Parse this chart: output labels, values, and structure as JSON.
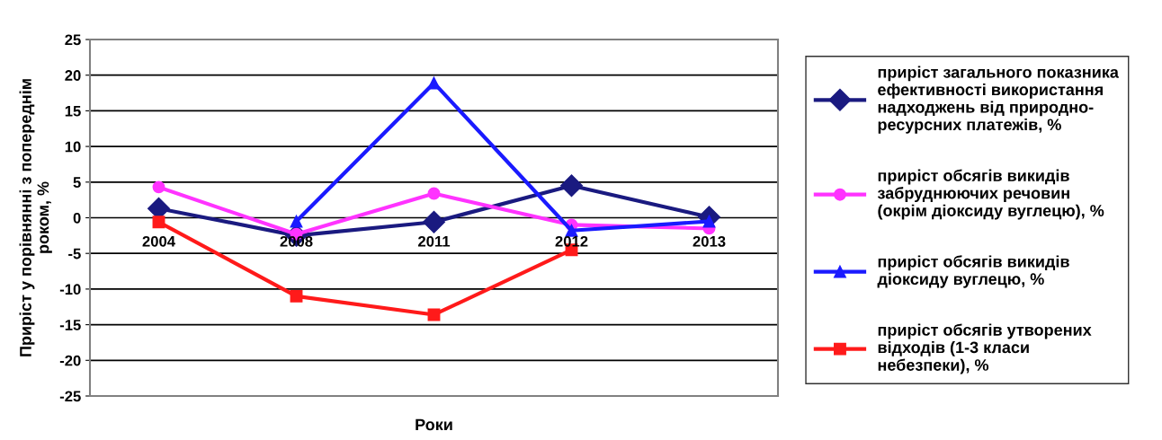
{
  "chart_data": {
    "type": "line",
    "xlabel": "Роки",
    "ylabel": "Приріст у порівнянні з попереднім\nроком, %",
    "categories": [
      "2004",
      "2008",
      "2011",
      "2012",
      "2013"
    ],
    "series": [
      {
        "name": "приріст загального показника\nефективності використання\nнадходжень від природно-\nресурсних платежів, %",
        "color": "#1a1a80",
        "marker": "diamond",
        "values": [
          1.3,
          -2.5,
          -0.6,
          4.5,
          0.1
        ]
      },
      {
        "name": "приріст обсягів викидів\nзабруднюючих речовин\n(окрім діоксиду вуглецю), %",
        "color": "#ff33ff",
        "marker": "circle",
        "values": [
          4.3,
          -2.3,
          3.4,
          -1.0,
          -1.5
        ]
      },
      {
        "name": "приріст обсягів викидів\nдіоксиду вуглецю, %",
        "color": "#1a1aff",
        "marker": "triangle",
        "values": [
          null,
          -0.5,
          18.9,
          -1.8,
          -0.5
        ]
      },
      {
        "name": "приріст обсягів утворених\nвідходів (1-3 класи\nнебезпеки), %",
        "color": "#ff1a1a",
        "marker": "square",
        "values": [
          -0.6,
          -11,
          -13.6,
          -4.5,
          null
        ]
      }
    ],
    "ylim": [
      -25,
      25
    ],
    "yticks": [
      -25,
      -20,
      -15,
      -10,
      -5,
      0,
      5,
      10,
      15,
      20,
      25
    ],
    "grid": "y",
    "legend": "right",
    "line_style": "solid"
  }
}
